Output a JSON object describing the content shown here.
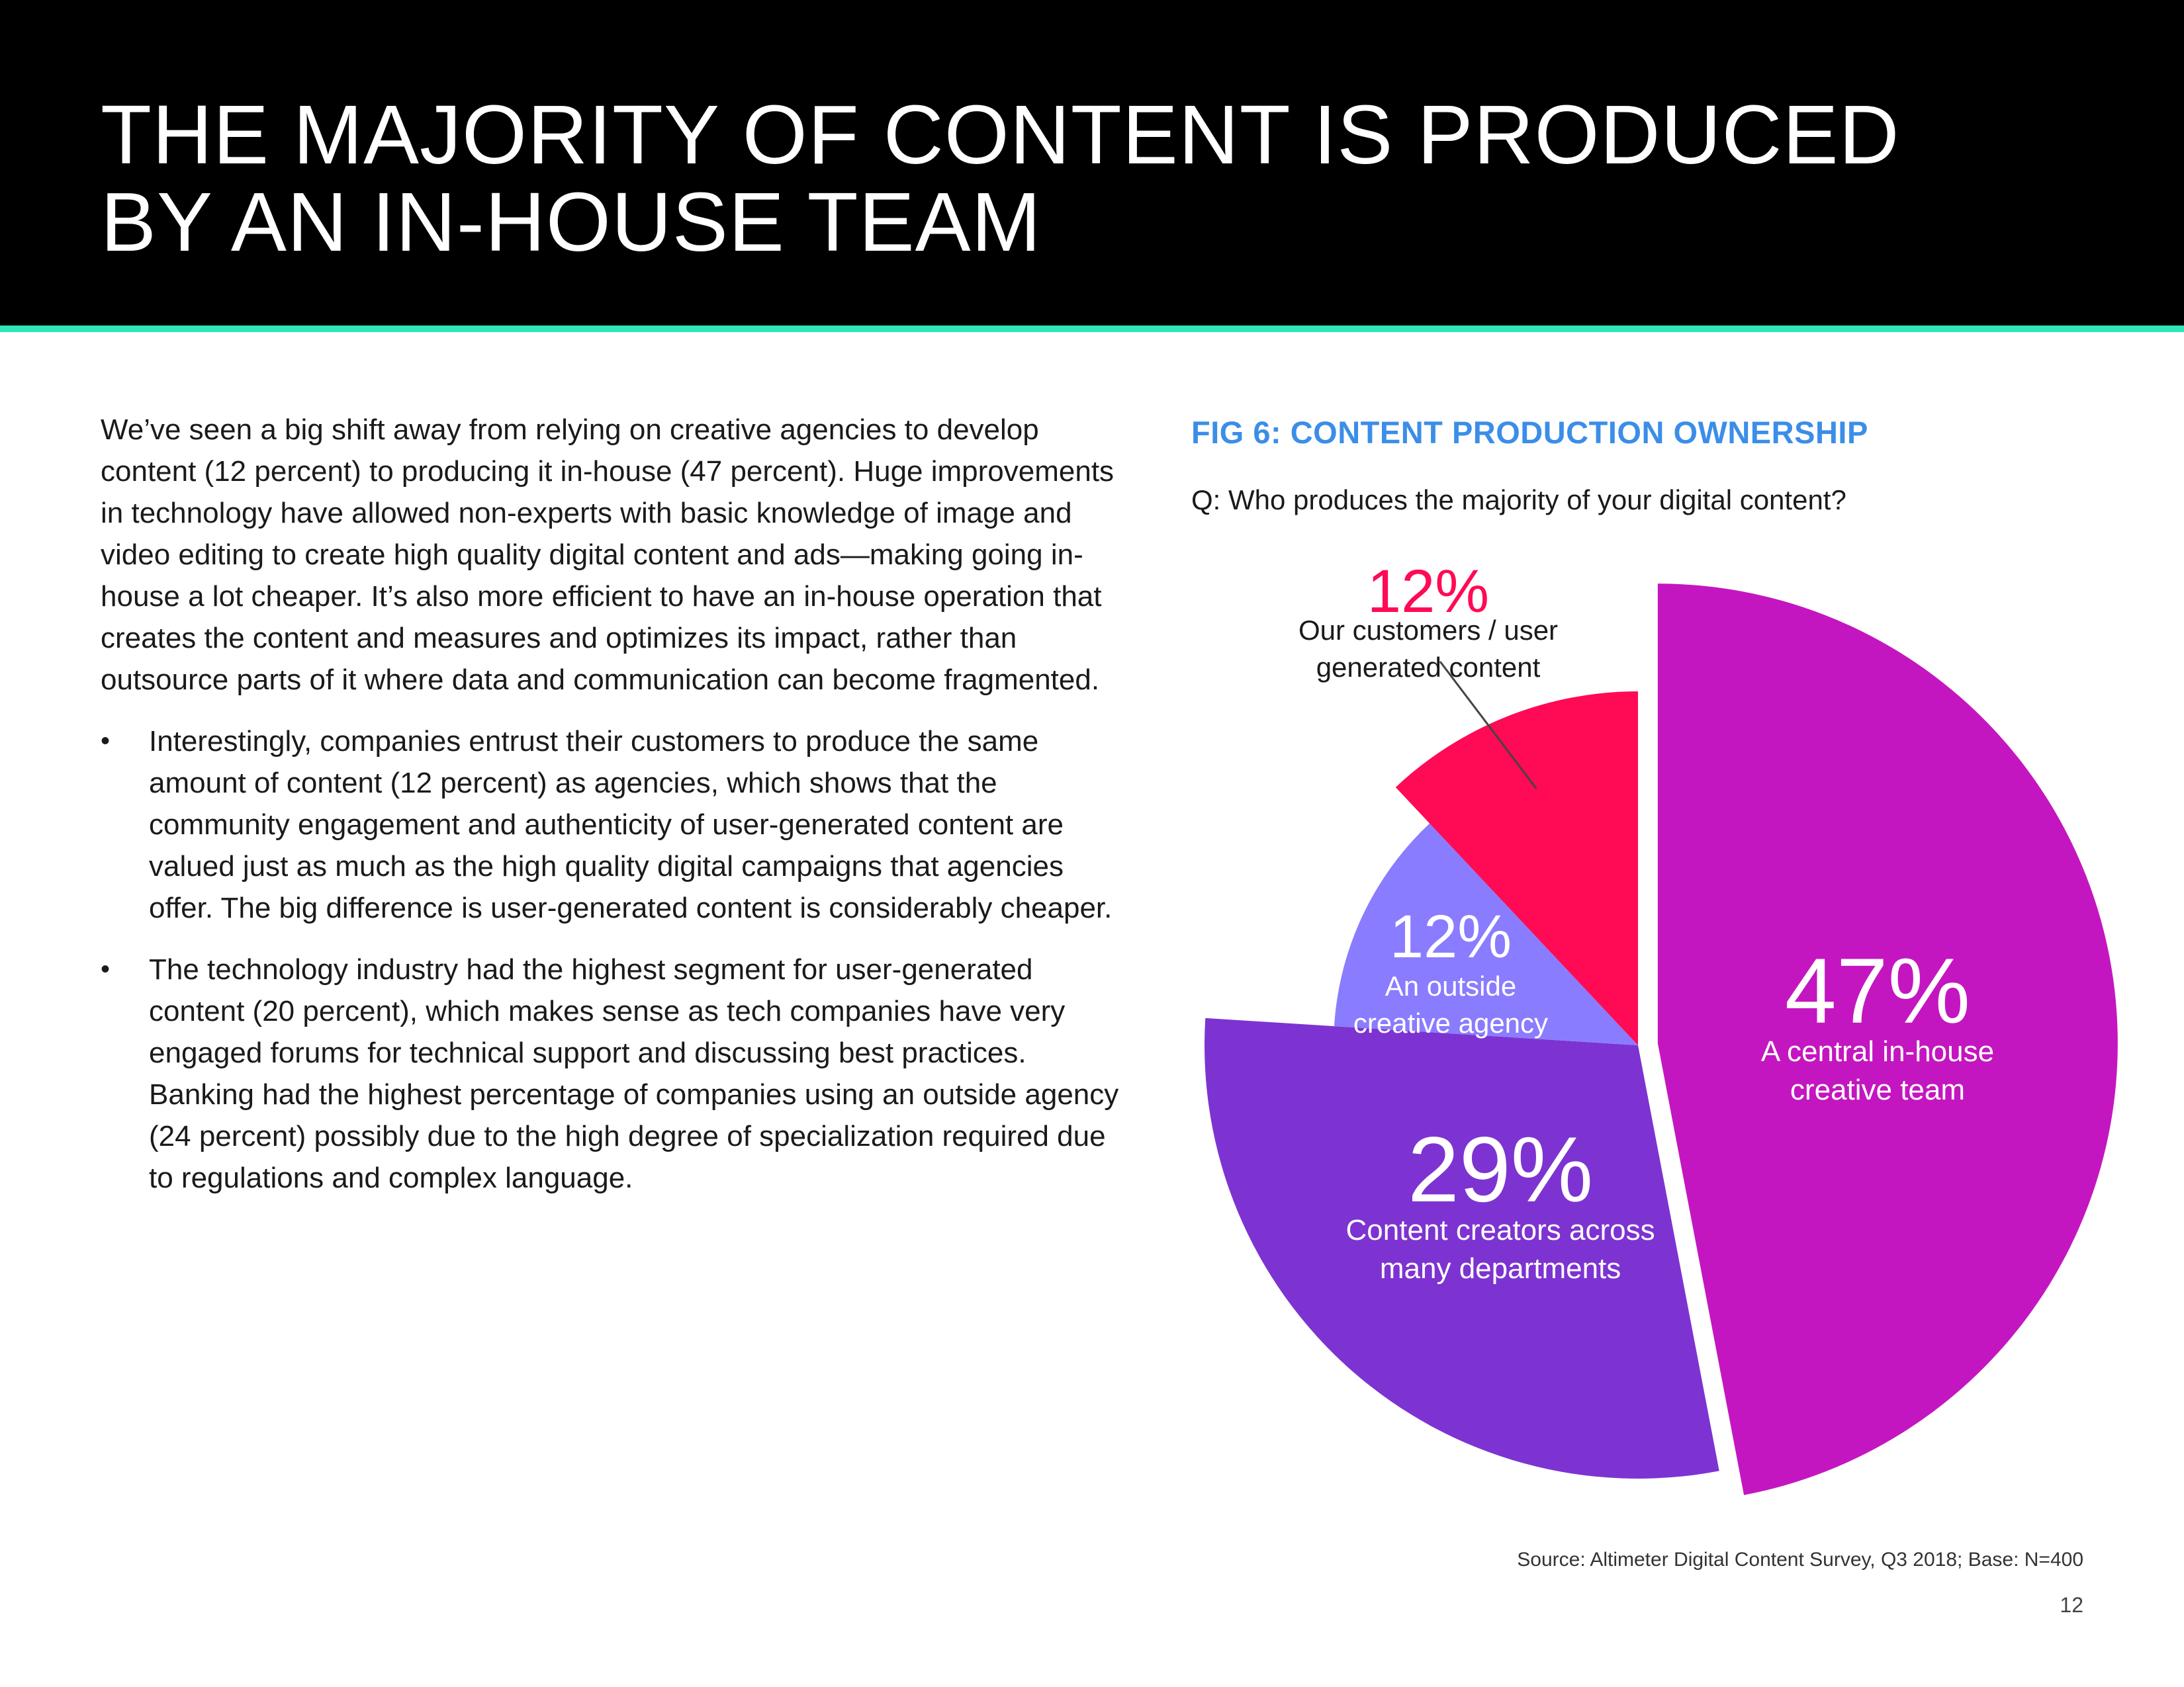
{
  "header": {
    "title_line1": "THE MAJORITY OF CONTENT IS PRODUCED",
    "title_line2": "BY AN IN-HOUSE TEAM",
    "background_color": "#000000",
    "rule_color": "#2ee6b8"
  },
  "body": {
    "intro": "We’ve seen a big shift away from relying on creative agencies to develop content (12 percent) to producing it in-house (47 percent). Huge improvements in technology have allowed non-experts with basic knowledge of image and video editing to create high quality digital content and ads—making going in-house a lot cheaper. It’s also more efficient to have an in-house operation that creates the content and measures and optimizes its impact, rather than outsource parts of it where data and communication can become fragmented.",
    "bullet_marker": "•",
    "bullets": [
      "Interestingly, companies entrust their customers to produce the same amount of content (12 percent) as agencies, which shows that the community engagement and authenticity of user-generated content are valued just as much as the high quality digital campaigns that agencies offer. The big difference is user-generated content is considerably cheaper.",
      "The technology industry had the highest segment for user-generated content (20 percent), which makes sense as tech companies have very engaged forums for technical support and discussing best practices. Banking had the highest percentage of companies using an outside agency (24 percent) possibly due to the high degree of specialization required due to regulations and complex language."
    ]
  },
  "figure": {
    "title": "FIG 6: CONTENT PRODUCTION OWNERSHIP",
    "question": "Q: Who produces the majority of your digital content?",
    "title_color": "#3b8ee8"
  },
  "chart_data": {
    "type": "pie",
    "title": "FIG 6: CONTENT PRODUCTION OWNERSHIP",
    "slices": [
      {
        "label": "A central in-house creative team",
        "label_lines": [
          "A central in-house",
          "creative team"
        ],
        "value": 47,
        "value_text": "47%",
        "color": "#c416c0",
        "exploded": true
      },
      {
        "label": "Content creators across many departments",
        "label_lines": [
          "Content creators across",
          "many departments"
        ],
        "value": 29,
        "value_text": "29%",
        "color": "#7d33d1",
        "exploded": false
      },
      {
        "label": "An outside creative agency",
        "label_lines": [
          "An outside",
          "creative agency"
        ],
        "value": 12,
        "value_text": "12%",
        "color": "#8a7cff",
        "exploded": false
      },
      {
        "label": "Our customers / user generated content",
        "label_lines": [
          "Our customers / user",
          "generated content"
        ],
        "value": 12,
        "value_text": "12%",
        "color": "#ff0a54",
        "exploded": false,
        "label_outside": true
      }
    ],
    "label_text_color": "#ffffff",
    "outside_value_color": "#ff0a54",
    "outside_label_color": "#1a1a1a"
  },
  "footer": {
    "source": "Source: Altimeter Digital Content Survey, Q3 2018; Base: N=400",
    "page_number": "12"
  }
}
